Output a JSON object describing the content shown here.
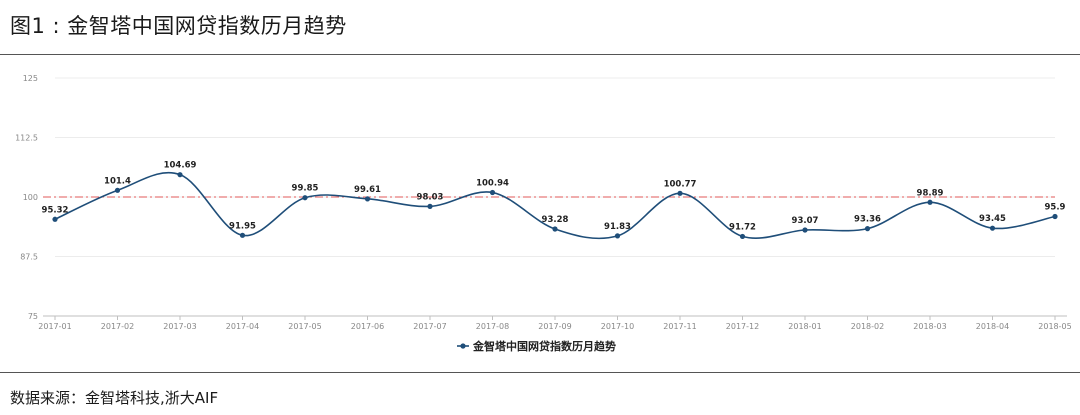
{
  "figure": {
    "title": "图1 : 金智塔中国网贷指数历月趋势",
    "source": "数据来源：金智塔科技,浙大AIF"
  },
  "chart_data": {
    "type": "line",
    "title": "",
    "xlabel": "",
    "ylabel": "",
    "x": [
      "2017-01",
      "2017-02",
      "2017-03",
      "2017-04",
      "2017-05",
      "2017-06",
      "2017-07",
      "2017-08",
      "2017-09",
      "2017-10",
      "2017-11",
      "2017-12",
      "2018-01",
      "2018-02",
      "2018-03",
      "2018-04",
      "2018-05"
    ],
    "series": [
      {
        "name": "金智塔中国网贷指数历月趋势",
        "values": [
          95.32,
          101.4,
          104.69,
          91.95,
          99.85,
          99.61,
          98.03,
          100.94,
          93.28,
          91.83,
          100.77,
          91.72,
          93.07,
          93.36,
          98.89,
          93.45,
          95.9
        ],
        "labels": [
          "95.32",
          "101.4",
          "104.69",
          "91.95",
          "99.85",
          "99.61",
          "98.03",
          "100.94",
          "93.28",
          "91.83",
          "100.77",
          "91.72",
          "93.07",
          "93.36",
          "98.89",
          "93.45",
          "95.9"
        ],
        "color": "#1f4e79"
      }
    ],
    "ylim": [
      75,
      125
    ],
    "yticks": [
      75,
      87.5,
      100,
      112.5,
      125
    ],
    "ytick_labels": [
      "75",
      "87.5",
      "100",
      "112.5",
      "125"
    ],
    "reference_line": {
      "value": 100,
      "color": "#e05a5a",
      "style": "dash-dot"
    },
    "grid": true,
    "legend": "bottom-center"
  }
}
